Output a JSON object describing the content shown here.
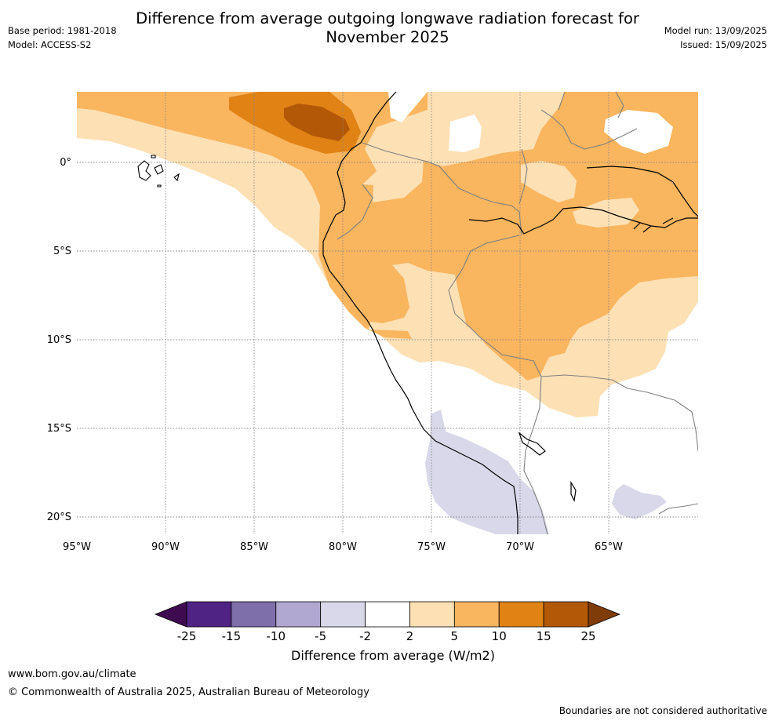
{
  "title_line1": "Difference from average outgoing longwave radiation forecast for",
  "title_line2": "November 2025",
  "base_period": "Base period: 1981-2018",
  "model": "Model: ACCESS-S2",
  "model_run": "Model run: 13/09/2025",
  "issued": "Issued: 15/09/2025",
  "lat_labels": [
    "0°",
    "5°S",
    "10°S",
    "15°S",
    "20°S"
  ],
  "lon_labels": [
    "95°W",
    "90°W",
    "85°W",
    "80°W",
    "75°W",
    "70°W",
    "65°W"
  ],
  "colorbar": {
    "ticks": [
      "-25",
      "-15",
      "-10",
      "-5",
      "-2",
      "2",
      "5",
      "10",
      "15",
      "25"
    ],
    "colors": [
      "#3f0a4f",
      "#4f2384",
      "#7e6ea9",
      "#b0a8d0",
      "#d8d8ea",
      "#ffffff",
      "#fde0b4",
      "#fab55f",
      "#e08214",
      "#b35806",
      "#7f3b08"
    ],
    "label": "Difference from average (W/m2)"
  },
  "footer_url": "www.bom.gov.au/climate",
  "footer_copyright": "© Commonwealth of Australia 2025, Australian Bureau of Meteorology",
  "footer_note": "Boundaries are not considered authoritative"
}
